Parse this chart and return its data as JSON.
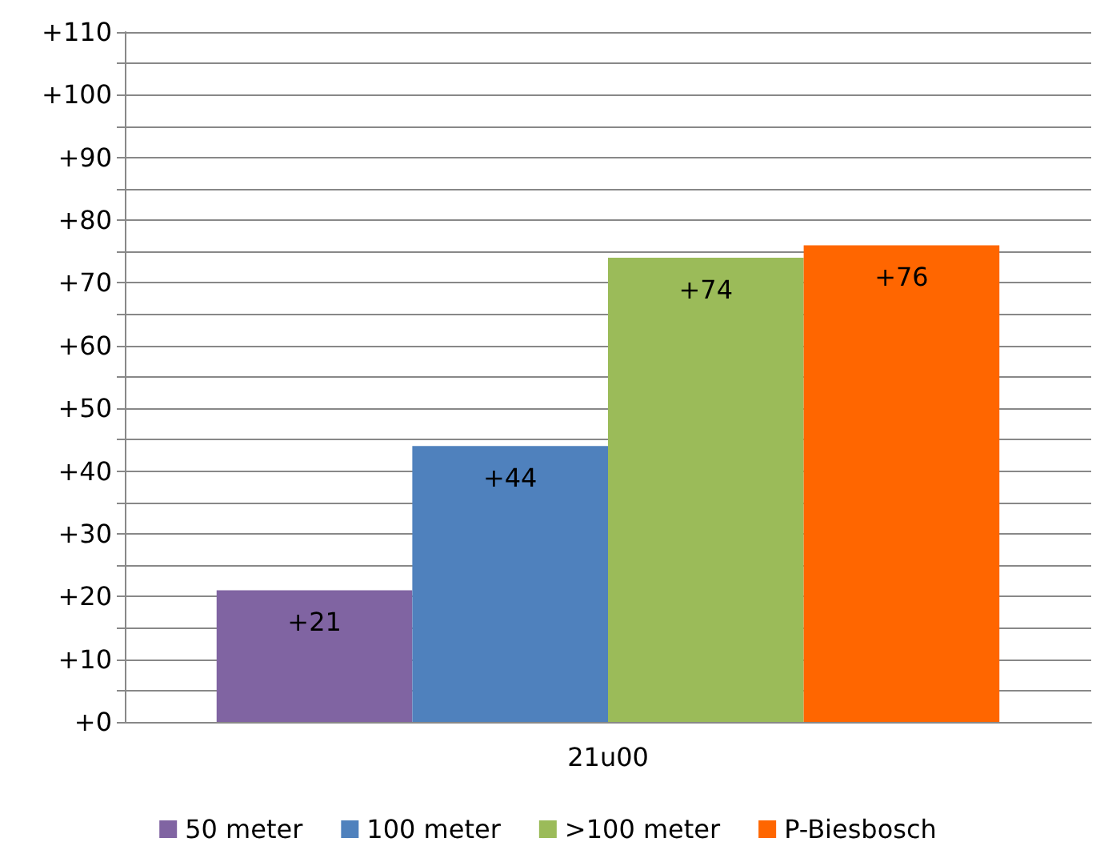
{
  "chart_data": {
    "type": "bar",
    "categories": [
      "21u00"
    ],
    "series": [
      {
        "name": "50 meter",
        "color": "#8064a2",
        "values": [
          21
        ],
        "value_labels": [
          "+21"
        ]
      },
      {
        "name": "100 meter",
        "color": "#4f81bd",
        "values": [
          44
        ],
        "value_labels": [
          "+44"
        ]
      },
      {
        "name": ">100 meter",
        "color": "#9bbb59",
        "values": [
          74
        ],
        "value_labels": [
          "+74"
        ]
      },
      {
        "name": "P-Biesbosch",
        "color": "#ff6600",
        "values": [
          76
        ],
        "value_labels": [
          "+76"
        ]
      }
    ],
    "ylim": [
      0,
      110
    ],
    "yticks": [
      {
        "value": 0,
        "label": "+0"
      },
      {
        "value": 5,
        "label": null
      },
      {
        "value": 10,
        "label": "+10"
      },
      {
        "value": 15,
        "label": null
      },
      {
        "value": 20,
        "label": "+20"
      },
      {
        "value": 25,
        "label": null
      },
      {
        "value": 30,
        "label": "+30"
      },
      {
        "value": 35,
        "label": null
      },
      {
        "value": 40,
        "label": "+40"
      },
      {
        "value": 45,
        "label": null
      },
      {
        "value": 50,
        "label": "+50"
      },
      {
        "value": 55,
        "label": null
      },
      {
        "value": 60,
        "label": "+60"
      },
      {
        "value": 65,
        "label": null
      },
      {
        "value": 70,
        "label": "+70"
      },
      {
        "value": 75,
        "label": null
      },
      {
        "value": 80,
        "label": "+80"
      },
      {
        "value": 85,
        "label": null
      },
      {
        "value": 90,
        "label": "+90"
      },
      {
        "value": 95,
        "label": null
      },
      {
        "value": 100,
        "label": "+100"
      },
      {
        "value": 105,
        "label": null
      },
      {
        "value": 110,
        "label": "+110"
      }
    ],
    "grid": true,
    "legend": "bottom"
  }
}
